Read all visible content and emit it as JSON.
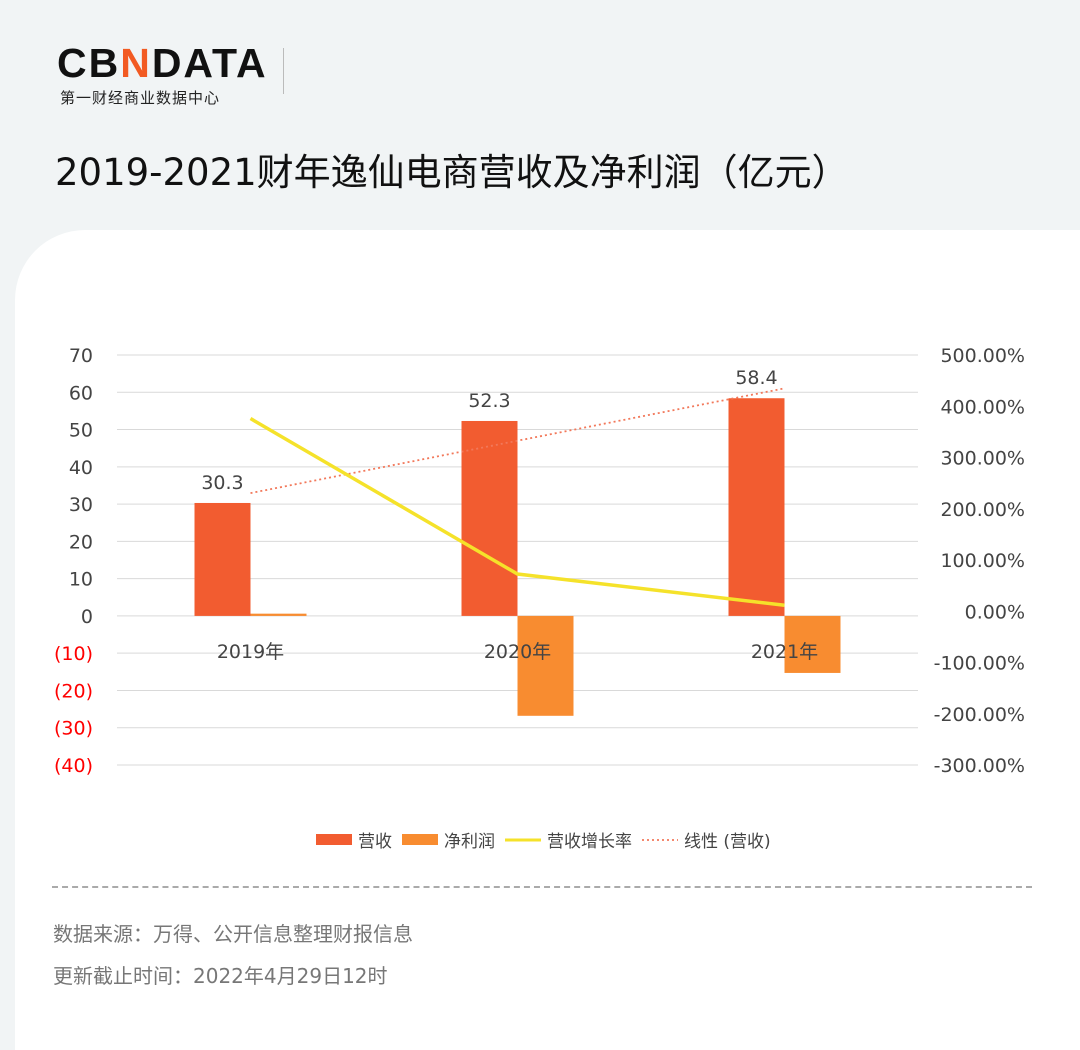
{
  "logo": {
    "text": "CBNDATA",
    "subtitle": "第一财经商业数据中心"
  },
  "title": "2019-2021财年逸仙电商营收及净利润（亿元）",
  "chart_data": {
    "type": "bar",
    "categories": [
      "2019年",
      "2020年",
      "2021年"
    ],
    "series": [
      {
        "name": "营收",
        "type": "bar",
        "axis": "left",
        "values": [
          30.3,
          52.3,
          58.4
        ],
        "labels": [
          "30.3",
          "52.3",
          "58.4"
        ],
        "color": "#f25c30"
      },
      {
        "name": "净利润",
        "type": "bar",
        "axis": "left",
        "values": [
          0.6,
          -26.8,
          -15.3
        ],
        "color": "#f88c30"
      },
      {
        "name": "营收增长率",
        "type": "line",
        "axis": "right",
        "values": [
          376,
          72.6,
          11.7
        ],
        "color": "#f5e22a"
      },
      {
        "name": "线性 (营收)",
        "type": "trendline",
        "axis": "left",
        "of": "营收",
        "color": "#f2785a"
      }
    ],
    "left_axis": {
      "ylim": [
        -40,
        70
      ],
      "ticks": [
        "70",
        "60",
        "50",
        "40",
        "30",
        "20",
        "10",
        "0",
        "(10)",
        "(20)",
        "(30)",
        "(40)"
      ],
      "negative_color": "#ff0000"
    },
    "right_axis": {
      "ylim": [
        -300,
        500
      ],
      "ticks": [
        "500.00%",
        "400.00%",
        "300.00%",
        "200.00%",
        "100.00%",
        "0.00%",
        "-100.00%",
        "-200.00%",
        "-300.00%"
      ]
    },
    "grid": true,
    "legend": "bottom"
  },
  "footer": {
    "source": "数据来源：万得、公开信息整理财报信息",
    "updated": "更新截止时间：2022年4月29日12时"
  }
}
